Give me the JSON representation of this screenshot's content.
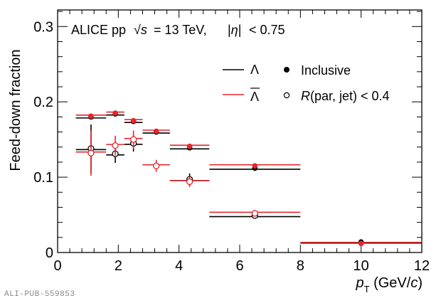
{
  "chart_data": {
    "type": "scatter",
    "title": "ALICE pp √s = 13 TeV, |η| < 0.75",
    "header": {
      "experiment": "ALICE pp",
      "energy": "= 13 TeV,",
      "eta": "< 0.75"
    },
    "xlabel": "p_T (GeV/c)",
    "ylabel": "Feed-down fraction",
    "xlim": [
      0,
      12
    ],
    "ylim": [
      0,
      0.322
    ],
    "xticks": [
      0,
      2,
      4,
      6,
      8,
      10,
      12
    ],
    "yticks": [
      0,
      0.1,
      0.2,
      0.3
    ],
    "ytick_labels": [
      "0",
      "0.1",
      "0.2",
      "0.3"
    ],
    "grid": false,
    "legend": {
      "placement": "top-right",
      "entries": [
        {
          "symbol": "line",
          "color": "#000000",
          "label": "Λ"
        },
        {
          "symbol": "line",
          "color": "#e3262b",
          "label": "Λ̄"
        },
        {
          "symbol": "filled-circle",
          "color": "#000000",
          "label": "Inclusive"
        },
        {
          "symbol": "open-circle",
          "color": "#000000",
          "label": "R(par, jet) < 0.4"
        }
      ]
    },
    "bins": [
      [
        0.6,
        1.6
      ],
      [
        1.6,
        2.2
      ],
      [
        2.2,
        2.8
      ],
      [
        2.8,
        3.7
      ],
      [
        3.7,
        5.0
      ],
      [
        5.0,
        8.0
      ],
      [
        8.0,
        12.0
      ]
    ],
    "x": [
      1.1,
      1.9,
      2.5,
      3.25,
      4.35,
      6.5,
      10.0
    ],
    "series": [
      {
        "name": "Λ Inclusive",
        "color": "#000000",
        "marker": "filled",
        "values": [
          0.18,
          0.184,
          0.174,
          0.16,
          0.139,
          0.112,
          0.014
        ],
        "yerr": [
          0.003,
          0.003,
          0.003,
          0.003,
          0.003,
          0.003,
          0.003
        ]
      },
      {
        "name": "Λ̄ Inclusive",
        "color": "#e3262b",
        "marker": "filled",
        "values": [
          0.181,
          0.185,
          0.175,
          0.161,
          0.141,
          0.115,
          0.012
        ],
        "yerr": [
          0.003,
          0.003,
          0.003,
          0.003,
          0.003,
          0.003,
          0.003
        ]
      },
      {
        "name": "Λ R(par, jet) < 0.4",
        "color": "#000000",
        "marker": "open",
        "values": [
          0.138,
          0.131,
          0.145,
          null,
          0.097,
          0.049,
          null
        ],
        "yerr": [
          0.032,
          0.012,
          0.011,
          null,
          0.008,
          0.004,
          null
        ]
      },
      {
        "name": "Λ̄ R(par, jet) < 0.4",
        "color": "#e3262b",
        "marker": "open",
        "values": [
          0.132,
          0.142,
          0.15,
          0.115,
          0.094,
          0.052,
          null
        ],
        "yerr": [
          0.03,
          0.013,
          0.012,
          0.008,
          0.007,
          0.004,
          null
        ]
      }
    ]
  },
  "watermark": "ALI-PUB-559853"
}
